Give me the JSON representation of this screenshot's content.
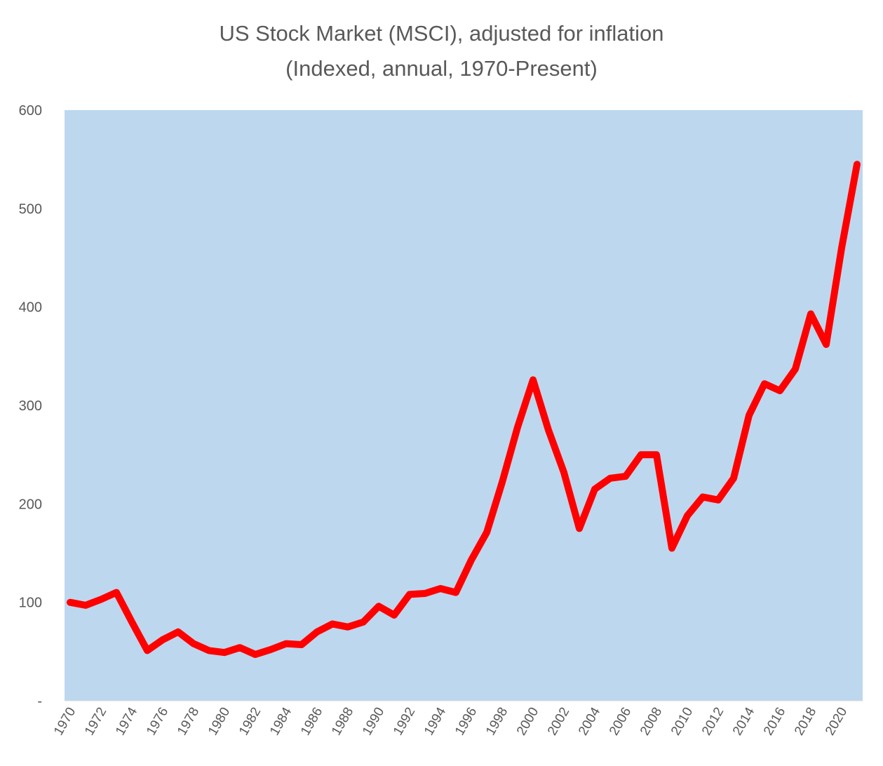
{
  "chart_data": {
    "type": "line",
    "title": "US Stock Market (MSCI), adjusted for inflation",
    "subtitle": "(Indexed, annual, 1970-Present)",
    "xlabel": "",
    "ylabel": "",
    "ylim": [
      0,
      600
    ],
    "y_ticks": [
      "-",
      "100",
      "200",
      "300",
      "400",
      "500",
      "600"
    ],
    "x_tick_labels": [
      "1970",
      "1972",
      "1974",
      "1976",
      "1978",
      "1980",
      "1982",
      "1984",
      "1986",
      "1988",
      "1990",
      "1992",
      "1994",
      "1996",
      "1998",
      "2000",
      "2002",
      "2004",
      "2006",
      "2008",
      "2010",
      "2012",
      "2014",
      "2016",
      "2018",
      "2020"
    ],
    "grid": false,
    "legend": "none",
    "colors": {
      "line": "#ff0000",
      "plot_background": "#bdd7ee",
      "text": "#595959"
    },
    "x": [
      1970,
      1971,
      1972,
      1973,
      1974,
      1975,
      1976,
      1977,
      1978,
      1979,
      1980,
      1981,
      1982,
      1983,
      1984,
      1985,
      1986,
      1987,
      1988,
      1989,
      1990,
      1991,
      1992,
      1993,
      1994,
      1995,
      1996,
      1997,
      1998,
      1999,
      2000,
      2001,
      2002,
      2003,
      2004,
      2005,
      2006,
      2007,
      2008,
      2009,
      2010,
      2011,
      2012,
      2013,
      2014,
      2015,
      2016,
      2017,
      2018,
      2019,
      2020,
      2021
    ],
    "series": [
      {
        "values": [
          100,
          97,
          103,
          110,
          80,
          51,
          62,
          70,
          58,
          51,
          49,
          54,
          47,
          52,
          58,
          57,
          70,
          78,
          75,
          80,
          96,
          87,
          108,
          109,
          114,
          110,
          143,
          171,
          222,
          278,
          326,
          275,
          232,
          175,
          215,
          226,
          228,
          250,
          250,
          155,
          188,
          207,
          204,
          226,
          290,
          322,
          315,
          337,
          393,
          362,
          460,
          545
        ]
      }
    ]
  }
}
